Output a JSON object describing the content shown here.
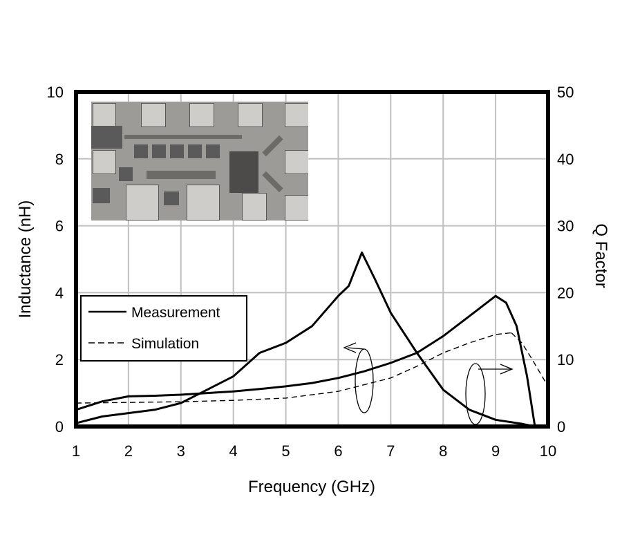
{
  "chart_data": {
    "type": "line",
    "title": "",
    "xlabel": "Frequency (GHz)",
    "ylabel": "Inductance (nH)",
    "y2label": "Q Factor",
    "xlim": [
      1,
      10
    ],
    "ylim": [
      0,
      10
    ],
    "y2lim": [
      0,
      50
    ],
    "xticks": [
      "1",
      "2",
      "3",
      "4",
      "5",
      "6",
      "7",
      "8",
      "9",
      "10"
    ],
    "yticks": [
      "0",
      "2",
      "4",
      "6",
      "8",
      "10"
    ],
    "y2ticks": [
      "0",
      "10",
      "20",
      "30",
      "40",
      "50"
    ],
    "grid": true,
    "legend": {
      "position": "left-middle",
      "entries": [
        "Measurement",
        "Simulation"
      ]
    },
    "inset": "chip micrograph photo (top-left)",
    "annotations": [
      "ellipse with left arrow around inductance curves near 6.5 GHz (refers to left axis)",
      "ellipse with right arrow around Q curves near 8.6 GHz (refers to right axis)"
    ],
    "series": [
      {
        "name": "Measurement - Inductance",
        "axis": "left",
        "style": "solid",
        "x": [
          1,
          1.5,
          2,
          2.5,
          3,
          3.5,
          4,
          4.5,
          5,
          5.5,
          6,
          6.5,
          7,
          7.5,
          8,
          8.5,
          9,
          9.2,
          9.4,
          9.6,
          9.75
        ],
        "y": [
          0.5,
          0.75,
          0.9,
          0.92,
          0.95,
          1.0,
          1.05,
          1.12,
          1.2,
          1.3,
          1.45,
          1.65,
          1.9,
          2.2,
          2.7,
          3.3,
          3.9,
          3.7,
          3.0,
          1.5,
          0.0
        ]
      },
      {
        "name": "Simulation - Inductance",
        "axis": "left",
        "style": "dashed",
        "x": [
          1,
          2,
          3,
          4,
          5,
          6,
          7,
          7.5,
          8,
          8.5,
          9,
          9.3
        ],
        "y": [
          0.7,
          0.72,
          0.74,
          0.78,
          0.85,
          1.05,
          1.45,
          1.8,
          2.2,
          2.5,
          2.75,
          2.8
        ]
      },
      {
        "name": "Measurement - Q Factor",
        "axis": "right",
        "style": "solid",
        "x": [
          1,
          1.5,
          2,
          2.5,
          3,
          3.5,
          4,
          4.5,
          5,
          5.5,
          6,
          6.2,
          6.45,
          6.7,
          7,
          7.5,
          8,
          8.5,
          9,
          9.5,
          9.75
        ],
        "y": [
          0.5,
          1.5,
          2.0,
          2.5,
          3.5,
          5.5,
          7.5,
          11,
          12.5,
          15,
          19.5,
          21,
          26,
          22,
          17,
          11,
          5.5,
          2.5,
          1.0,
          0.4,
          0.0
        ]
      },
      {
        "name": "Simulation - Q Factor",
        "axis": "right",
        "style": "dashed",
        "x": [
          9.3,
          9.5,
          9.7,
          9.85,
          10
        ],
        "y": [
          14,
          12.5,
          10,
          8,
          6
        ]
      }
    ]
  },
  "axes": {
    "xlabel": "Frequency (GHz)",
    "ylabel": "Inductance (nH)",
    "y2label": "Q Factor",
    "xticks": [
      "1",
      "2",
      "3",
      "4",
      "5",
      "6",
      "7",
      "8",
      "9",
      "10"
    ],
    "yticks": [
      "0",
      "2",
      "4",
      "6",
      "8",
      "10"
    ],
    "y2ticks": [
      "0",
      "10",
      "20",
      "30",
      "40",
      "50"
    ]
  },
  "legend": {
    "measurement": "Measurement",
    "simulation": "Simulation"
  }
}
